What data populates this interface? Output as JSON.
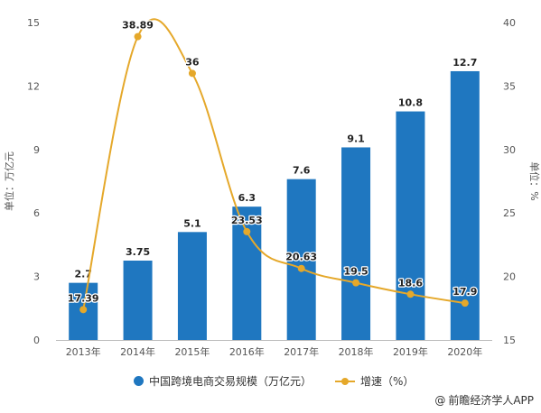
{
  "chart_data": {
    "type": "bar+line",
    "categories": [
      "2013年",
      "2014年",
      "2015年",
      "2016年",
      "2017年",
      "2018年",
      "2019年",
      "2020年"
    ],
    "series": [
      {
        "name": "中国跨境电商交易规模（万亿元）",
        "type": "bar",
        "axis": "left",
        "values": [
          2.7,
          3.75,
          5.1,
          6.3,
          7.6,
          9.1,
          10.8,
          12.7
        ],
        "labels": [
          "2.7",
          "3.75",
          "5.1",
          "6.3",
          "7.6",
          "9.1",
          "10.8",
          "12.7"
        ],
        "color": "#1F77C0"
      },
      {
        "name": "增速（%）",
        "type": "line",
        "axis": "right",
        "values": [
          17.39,
          38.89,
          36,
          23.53,
          20.63,
          19.5,
          18.6,
          17.9
        ],
        "labels": [
          "17.39",
          "38.89",
          "36",
          "23.53",
          "20.63",
          "19.5",
          "18.6",
          "17.9"
        ],
        "color": "#E5A82A"
      }
    ],
    "left_axis": {
      "label": "单位：万亿元",
      "ylim": [
        0,
        15
      ],
      "ticks": [
        "0",
        "3",
        "6",
        "9",
        "12",
        "15"
      ]
    },
    "right_axis": {
      "label": "单位：%",
      "ylim": [
        15,
        40
      ],
      "ticks": [
        "15",
        "20",
        "25",
        "30",
        "35",
        "40"
      ]
    },
    "grid": false,
    "legend_position": "bottom"
  },
  "legend": {
    "bar_label": "中国跨境电商交易规模（万亿元）",
    "line_label": "增速（%）"
  },
  "source": {
    "icon": "at-icon",
    "symbol": "@",
    "text": "前瞻经济学人APP"
  }
}
